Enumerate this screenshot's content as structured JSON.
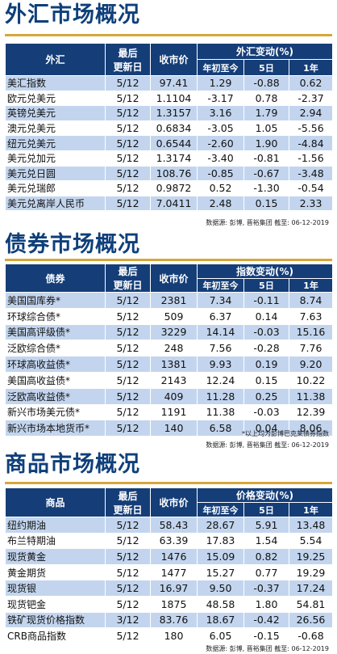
{
  "fx": {
    "title": "外汇市场概况",
    "headers": {
      "name": "外汇",
      "last_line1": "最后",
      "last_line2": "更新日",
      "close": "收市价",
      "change": "外汇变动(%)",
      "ytd": "年初至今",
      "d5": "5日",
      "y1": "1年"
    },
    "rows": [
      {
        "name": "美汇指数",
        "date": "5/12",
        "close": "97.41",
        "ytd": "1.29",
        "d5": "-0.88",
        "y1": "0.62"
      },
      {
        "name": "欧元兑美元",
        "date": "5/12",
        "close": "1.1104",
        "ytd": "-3.17",
        "d5": "0.78",
        "y1": "-2.37"
      },
      {
        "name": "英镑兑美元",
        "date": "5/12",
        "close": "1.3157",
        "ytd": "3.16",
        "d5": "1.79",
        "y1": "2.94"
      },
      {
        "name": "澳元兑美元",
        "date": "5/12",
        "close": "0.6834",
        "ytd": "-3.05",
        "d5": "1.05",
        "y1": "-5.56"
      },
      {
        "name": "纽元兑美元",
        "date": "5/12",
        "close": "0.6544",
        "ytd": "-2.60",
        "d5": "1.90",
        "y1": "-4.84"
      },
      {
        "name": "美元兑加元",
        "date": "5/12",
        "close": "1.3174",
        "ytd": "-3.40",
        "d5": "-0.81",
        "y1": "-1.56"
      },
      {
        "name": "美元兑日圆",
        "date": "5/12",
        "close": "108.76",
        "ytd": "-0.85",
        "d5": "-0.67",
        "y1": "-3.48"
      },
      {
        "name": "美元兑瑞郎",
        "date": "5/12",
        "close": "0.9872",
        "ytd": "0.52",
        "d5": "-1.30",
        "y1": "-0.54"
      },
      {
        "name": "美元兑离岸人民币",
        "date": "5/12",
        "close": "7.0411",
        "ytd": "2.48",
        "d5": "0.15",
        "y1": "2.33"
      }
    ],
    "source": "数据源: 彭博, 晋裕集团 截至: 06-12-2019"
  },
  "bond": {
    "title": "债券市场概况",
    "headers": {
      "name": "债券",
      "last_line1": "最后",
      "last_line2": "更新日",
      "close": "收市价",
      "change": "指数变动(%)",
      "ytd": "年初至今",
      "d5": "5日",
      "y1": "1年"
    },
    "rows": [
      {
        "name": "美国国库券*",
        "date": "5/12",
        "close": "2381",
        "ytd": "7.34",
        "d5": "-0.11",
        "y1": "8.74"
      },
      {
        "name": "环球综合债*",
        "date": "5/12",
        "close": "509",
        "ytd": "6.37",
        "d5": "0.14",
        "y1": "7.63"
      },
      {
        "name": "美国高评级债*",
        "date": "5/12",
        "close": "3229",
        "ytd": "14.14",
        "d5": "-0.03",
        "y1": "15.16"
      },
      {
        "name": "泛欧综合债*",
        "date": "5/12",
        "close": "248",
        "ytd": "7.56",
        "d5": "-0.28",
        "y1": "7.76"
      },
      {
        "name": "环球高收益债*",
        "date": "5/12",
        "close": "1381",
        "ytd": "9.93",
        "d5": "0.19",
        "y1": "9.20"
      },
      {
        "name": "美国高收益债*",
        "date": "5/12",
        "close": "2143",
        "ytd": "12.24",
        "d5": "0.15",
        "y1": "10.22"
      },
      {
        "name": "泛欧高收益债*",
        "date": "5/12",
        "close": "409",
        "ytd": "11.28",
        "d5": "0.25",
        "y1": "11.38"
      },
      {
        "name": "新兴市场美元债*",
        "date": "5/12",
        "close": "1191",
        "ytd": "11.38",
        "d5": "-0.03",
        "y1": "12.39"
      },
      {
        "name": "新兴市场本地货币*",
        "date": "5/12",
        "close": "140",
        "ytd": "6.58",
        "d5": "0.04",
        "y1": "8.06"
      }
    ],
    "note": "*以上均为彭博巴克莱债券指数",
    "source": "数据源: 彭博, 晋裕集团 截至: 06-12-2019"
  },
  "commodity": {
    "title": "商品市场概况",
    "headers": {
      "name": "商品",
      "last_line1": "最后",
      "last_line2": "更新日",
      "close": "收市价",
      "change": "价格变动(%)",
      "ytd": "年初至今",
      "d5": "5日",
      "y1": "1年"
    },
    "rows": [
      {
        "name": "纽约期油",
        "date": "5/12",
        "close": "58.43",
        "ytd": "28.67",
        "d5": "5.91",
        "y1": "13.48"
      },
      {
        "name": "布兰特期油",
        "date": "5/12",
        "close": "63.39",
        "ytd": "17.83",
        "d5": "1.54",
        "y1": "5.54"
      },
      {
        "name": "现货黄金",
        "date": "5/12",
        "close": "1476",
        "ytd": "15.09",
        "d5": "0.82",
        "y1": "19.25"
      },
      {
        "name": "黄金期货",
        "date": "5/12",
        "close": "1477",
        "ytd": "15.27",
        "d5": "0.77",
        "y1": "19.29"
      },
      {
        "name": "现货银",
        "date": "5/12",
        "close": "16.97",
        "ytd": "9.50",
        "d5": "-0.37",
        "y1": "17.24"
      },
      {
        "name": "现货钯金",
        "date": "5/12",
        "close": "1875",
        "ytd": "48.58",
        "d5": "1.80",
        "y1": "54.81"
      },
      {
        "name": "铁矿现货价格指数",
        "date": "3/12",
        "close": "83.76",
        "ytd": "18.67",
        "d5": "-0.42",
        "y1": "26.56"
      },
      {
        "name": "CRB商品指数",
        "date": "5/12",
        "close": "180",
        "ytd": "6.05",
        "d5": "-0.15",
        "y1": "-0.68"
      }
    ],
    "source": "数据源: 彭博, 晋裕集团 截至: 06-12-2019"
  },
  "colors": {
    "header_bg": "#153e78",
    "row_blue": "#c3d5ee",
    "title": "#0e3f7a",
    "accent": "#d8a63a"
  }
}
